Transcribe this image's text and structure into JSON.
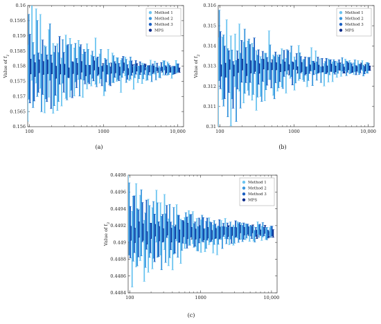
{
  "chart_data": [
    {
      "type": "scatter",
      "panel_label": "(a)",
      "ylabel": "Value of f",
      "ylabel_sub": "1",
      "x_scale": "log",
      "xlim": [
        95,
        12000
      ],
      "ylim": [
        0.156,
        0.16
      ],
      "x_ticks": [
        100,
        1000,
        10000
      ],
      "x_tick_labels": [
        "100",
        "1000",
        "10,000"
      ],
      "y_ticks": [
        0.156,
        0.1565,
        0.157,
        0.1575,
        0.158,
        0.1585,
        0.159,
        0.1595,
        0.16
      ],
      "y_tick_labels": [
        "0.156",
        "0.1565",
        "0.157",
        "0.1575",
        "0.158",
        "0.1585",
        "0.159",
        "0.1595",
        "0.16"
      ],
      "center": 0.1579,
      "series": [
        {
          "name": "Method 1",
          "color": "#6bc4f0",
          "spread_start": 0.0022,
          "spread_end": 0.00025
        },
        {
          "name": "Method 2",
          "color": "#3a96dd",
          "spread_start": 0.0017,
          "spread_end": 0.0002
        },
        {
          "name": "Method 3",
          "color": "#1a5fc2",
          "spread_start": 0.0013,
          "spread_end": 0.00015
        },
        {
          "name": "MPS",
          "color": "#0a2a8a",
          "spread_start": 0.0003,
          "spread_end": 0.00012
        }
      ],
      "legend_position": "top-right"
    },
    {
      "type": "scatter",
      "panel_label": "(b)",
      "ylabel": "Value of f",
      "ylabel_sub": "2",
      "x_scale": "log",
      "xlim": [
        95,
        12000
      ],
      "ylim": [
        0.31,
        0.316
      ],
      "x_ticks": [
        100,
        1000,
        10000
      ],
      "x_tick_labels": [
        "100",
        "1000",
        "10,000"
      ],
      "y_ticks": [
        0.31,
        0.311,
        0.312,
        0.313,
        0.314,
        0.315,
        0.316
      ],
      "y_tick_labels": [
        "0.31",
        "0.311",
        "0.312",
        "0.313",
        "0.314",
        "0.315",
        "0.316"
      ],
      "center": 0.3129,
      "series": [
        {
          "name": "Method 1",
          "color": "#6bc4f0",
          "spread_start": 0.0028,
          "spread_end": 0.00035
        },
        {
          "name": "Method 2",
          "color": "#3a96dd",
          "spread_start": 0.0024,
          "spread_end": 0.0003
        },
        {
          "name": "Method 3",
          "color": "#1a5fc2",
          "spread_start": 0.0018,
          "spread_end": 0.00022
        },
        {
          "name": "MPS",
          "color": "#0a2a8a",
          "spread_start": 0.0004,
          "spread_end": 0.00018
        }
      ],
      "legend_position": "top-right"
    },
    {
      "type": "scatter",
      "panel_label": "(c)",
      "ylabel": "Value of f",
      "ylabel_sub": "3",
      "x_scale": "log",
      "xlim": [
        95,
        12000
      ],
      "ylim": [
        0.4484,
        0.4498
      ],
      "x_ticks": [
        100,
        1000,
        10000
      ],
      "x_tick_labels": [
        "100",
        "1000",
        "10,000"
      ],
      "y_ticks": [
        0.4484,
        0.4486,
        0.4488,
        0.449,
        0.4492,
        0.4494,
        0.4496,
        0.4498
      ],
      "y_tick_labels": [
        "0.4484",
        "0.4486",
        "0.4488",
        "0.449",
        "0.4492",
        "0.4494",
        "0.4496",
        "0.4498"
      ],
      "center": 0.44912,
      "series": [
        {
          "name": "Method 1",
          "color": "#6bc4f0",
          "spread_start": 0.00067,
          "spread_end": 9e-05
        },
        {
          "name": "Method 2",
          "color": "#3a96dd",
          "spread_start": 0.0006,
          "spread_end": 8e-05
        },
        {
          "name": "Method 3",
          "color": "#1a5fc2",
          "spread_start": 0.0004,
          "spread_end": 7e-05
        },
        {
          "name": "MPS",
          "color": "#0a2a8a",
          "spread_start": 0.00013,
          "spread_end": 6e-05
        }
      ],
      "legend_position": "top-right"
    }
  ]
}
